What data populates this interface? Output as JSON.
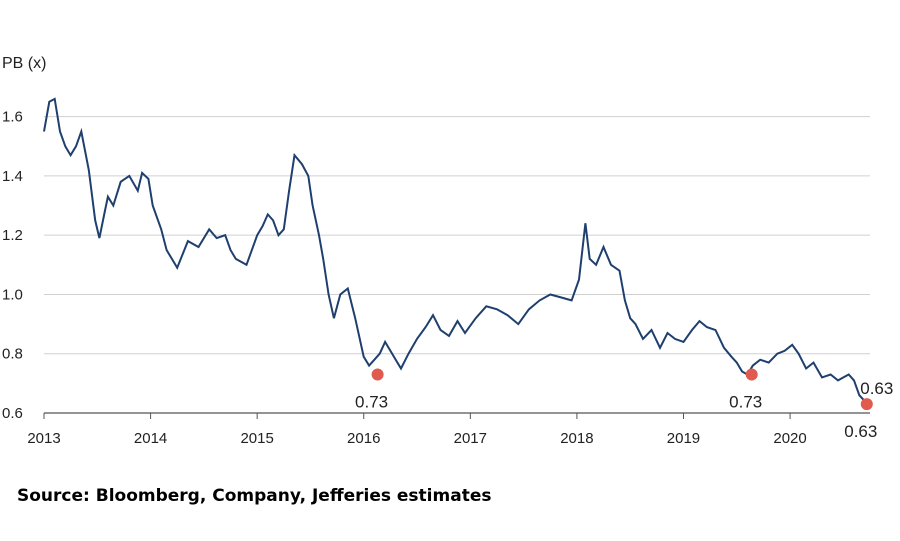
{
  "source_note": "Source: Bloomberg, Company, Jefferies estimates",
  "chart_data": {
    "type": "line",
    "title": "",
    "ylabel": "PB (x)",
    "xlabel": "",
    "ylim": [
      0.6,
      1.7
    ],
    "yticks": [
      0.6,
      0.8,
      1.0,
      1.2,
      1.4,
      1.6
    ],
    "ytick_labels": [
      "0.6",
      "0.8",
      "1.0",
      "1.2",
      "1.4",
      "1.6"
    ],
    "xlim": [
      2013.0,
      2020.75
    ],
    "xticks": [
      2013,
      2014,
      2015,
      2016,
      2017,
      2018,
      2019,
      2020
    ],
    "xtick_labels": [
      "2013",
      "2014",
      "2015",
      "2016",
      "2017",
      "2018",
      "2019",
      "2020"
    ],
    "grid": "horizontal",
    "line_color": "#1f3f6e",
    "marker_color": "#e05a4e",
    "series": [
      {
        "x": [
          2013.0,
          2013.05,
          2013.1,
          2013.15,
          2013.2,
          2013.25,
          2013.3,
          2013.35,
          2013.42,
          2013.48,
          2013.52,
          2013.57,
          2013.6,
          2013.65,
          2013.72,
          2013.8,
          2013.88,
          2013.92,
          2013.98,
          2014.02,
          2014.1,
          2014.15,
          2014.2,
          2014.25,
          2014.35,
          2014.45,
          2014.55,
          2014.62,
          2014.7,
          2014.75,
          2014.8,
          2014.9,
          2015.0,
          2015.05,
          2015.1,
          2015.15,
          2015.2,
          2015.25,
          2015.3,
          2015.35,
          2015.42,
          2015.48,
          2015.52,
          2015.58,
          2015.62,
          2015.67,
          2015.72,
          2015.78,
          2015.85,
          2015.92,
          2016.0,
          2016.05,
          2016.1,
          2016.15,
          2016.2,
          2016.25,
          2016.3,
          2016.35,
          2016.42,
          2016.5,
          2016.58,
          2016.65,
          2016.72,
          2016.8,
          2016.88,
          2016.95,
          2017.05,
          2017.15,
          2017.25,
          2017.35,
          2017.45,
          2017.55,
          2017.65,
          2017.75,
          2017.85,
          2017.95,
          2018.02,
          2018.08,
          2018.12,
          2018.18,
          2018.25,
          2018.32,
          2018.4,
          2018.45,
          2018.5,
          2018.55,
          2018.62,
          2018.7,
          2018.78,
          2018.85,
          2018.92,
          2019.0,
          2019.08,
          2019.15,
          2019.22,
          2019.3,
          2019.38,
          2019.45,
          2019.5,
          2019.55,
          2019.6,
          2019.65,
          2019.72,
          2019.8,
          2019.88,
          2019.95,
          2020.02,
          2020.08,
          2020.15,
          2020.22,
          2020.3,
          2020.38,
          2020.45,
          2020.5,
          2020.55,
          2020.6,
          2020.65,
          2020.7
        ],
        "values": [
          1.55,
          1.65,
          1.66,
          1.55,
          1.5,
          1.47,
          1.5,
          1.55,
          1.42,
          1.25,
          1.19,
          1.28,
          1.33,
          1.3,
          1.38,
          1.4,
          1.35,
          1.41,
          1.39,
          1.3,
          1.22,
          1.15,
          1.12,
          1.09,
          1.18,
          1.16,
          1.22,
          1.19,
          1.2,
          1.15,
          1.12,
          1.1,
          1.2,
          1.23,
          1.27,
          1.25,
          1.2,
          1.22,
          1.35,
          1.47,
          1.44,
          1.4,
          1.3,
          1.2,
          1.12,
          1.0,
          0.92,
          1.0,
          1.02,
          0.92,
          0.79,
          0.76,
          0.78,
          0.8,
          0.84,
          0.81,
          0.78,
          0.75,
          0.8,
          0.85,
          0.89,
          0.93,
          0.88,
          0.86,
          0.91,
          0.87,
          0.92,
          0.96,
          0.95,
          0.93,
          0.9,
          0.95,
          0.98,
          1.0,
          0.99,
          0.98,
          1.05,
          1.24,
          1.12,
          1.1,
          1.16,
          1.1,
          1.08,
          0.98,
          0.92,
          0.9,
          0.85,
          0.88,
          0.82,
          0.87,
          0.85,
          0.84,
          0.88,
          0.91,
          0.89,
          0.88,
          0.82,
          0.79,
          0.77,
          0.74,
          0.73,
          0.76,
          0.78,
          0.77,
          0.8,
          0.81,
          0.83,
          0.8,
          0.75,
          0.77,
          0.72,
          0.73,
          0.71,
          0.72,
          0.73,
          0.71,
          0.66,
          0.64
        ]
      }
    ],
    "annotations": [
      {
        "x": 2016.13,
        "y": 0.73,
        "label": "0.73"
      },
      {
        "x": 2019.64,
        "y": 0.73,
        "label": "0.73"
      },
      {
        "x": 2020.72,
        "y": 0.63,
        "label": "0.63"
      }
    ],
    "extra_labels": [
      "0.63"
    ]
  }
}
